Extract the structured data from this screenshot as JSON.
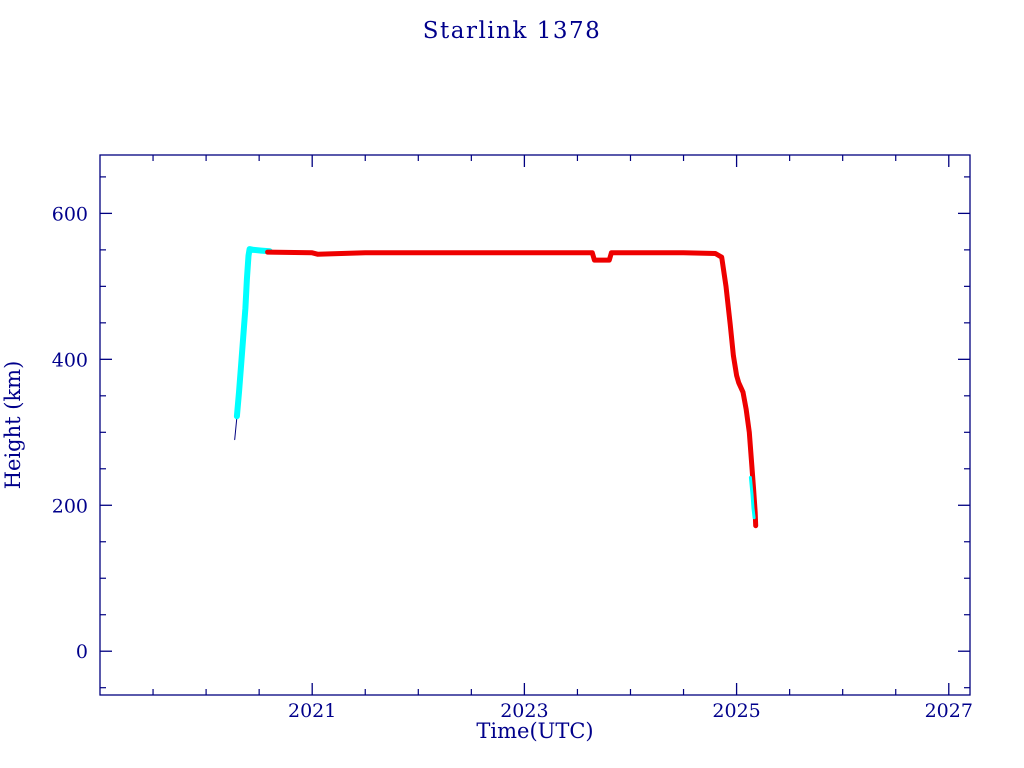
{
  "page": {
    "background": "#ffffff"
  },
  "chart_data": {
    "type": "line",
    "title": "Starlink 1378",
    "xlabel": "Time(UTC)",
    "ylabel": "Height (km)",
    "xlim": [
      2019.0,
      2027.2
    ],
    "ylim": [
      -60,
      680
    ],
    "x_ticks_labeled": [
      2021,
      2023,
      2025,
      2027
    ],
    "x_tick_minor_step": 0.5,
    "y_ticks_labeled": [
      0,
      200,
      400,
      600
    ],
    "y_tick_minor_step": 50,
    "grid": false,
    "legend": null,
    "colors": {
      "frame": "#000080",
      "text": "#00008B",
      "launch_line": "#000080",
      "ascent": "#00FFFF",
      "main": "#EE0000"
    },
    "series": [
      {
        "name": "pre-launch-thin-line",
        "color": "#000080",
        "width": 1,
        "points": [
          [
            2020.27,
            290
          ],
          [
            2020.3,
            335
          ]
        ]
      },
      {
        "name": "ascent-cyan",
        "color": "#00FFFF",
        "width": 6,
        "points": [
          [
            2020.29,
            322
          ],
          [
            2020.31,
            355
          ],
          [
            2020.33,
            392
          ],
          [
            2020.35,
            430
          ],
          [
            2020.37,
            470
          ],
          [
            2020.385,
            510
          ],
          [
            2020.4,
            542
          ],
          [
            2020.41,
            551
          ],
          [
            2020.45,
            550
          ],
          [
            2020.52,
            549
          ],
          [
            2020.6,
            548
          ]
        ]
      },
      {
        "name": "main-red-orbit-and-decay",
        "color": "#EE0000",
        "width": 5,
        "points": [
          [
            2020.58,
            547
          ],
          [
            2021.0,
            546
          ],
          [
            2021.05,
            544
          ],
          [
            2021.5,
            546
          ],
          [
            2022.0,
            546
          ],
          [
            2022.5,
            546
          ],
          [
            2023.0,
            546
          ],
          [
            2023.5,
            546
          ],
          [
            2023.64,
            546
          ],
          [
            2023.66,
            536
          ],
          [
            2023.8,
            536
          ],
          [
            2023.82,
            546
          ],
          [
            2024.0,
            546
          ],
          [
            2024.5,
            546
          ],
          [
            2024.8,
            545
          ],
          [
            2024.86,
            540
          ],
          [
            2024.9,
            500
          ],
          [
            2024.94,
            448
          ],
          [
            2024.97,
            405
          ],
          [
            2025.0,
            378
          ],
          [
            2025.02,
            368
          ],
          [
            2025.06,
            355
          ],
          [
            2025.09,
            332
          ],
          [
            2025.12,
            300
          ],
          [
            2025.14,
            262
          ],
          [
            2025.16,
            222
          ],
          [
            2025.175,
            190
          ],
          [
            2025.18,
            172
          ]
        ]
      },
      {
        "name": "reentry-cyan-tail",
        "color": "#00FFFF",
        "width": 3,
        "points": [
          [
            2025.13,
            238
          ],
          [
            2025.145,
            215
          ],
          [
            2025.155,
            196
          ],
          [
            2025.165,
            183
          ]
        ]
      }
    ]
  }
}
